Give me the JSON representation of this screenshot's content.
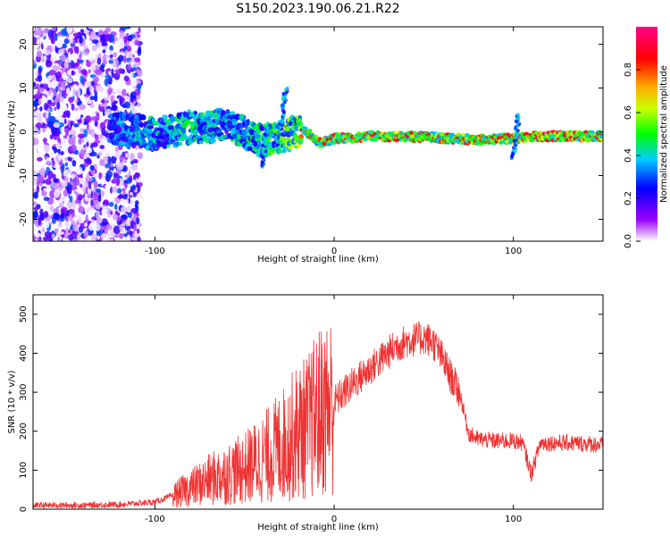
{
  "title": "S150.2023.190.06.21.R22",
  "chart_data": [
    {
      "type": "heatmap",
      "xlabel": "Height of straight line (km)",
      "ylabel": "Frequency (Hz)",
      "xlim": [
        -168,
        150
      ],
      "ylim": [
        -25,
        24
      ],
      "xticks": [
        -100,
        0,
        100
      ],
      "yticks": [
        -20,
        -10,
        0,
        10,
        20
      ],
      "colorbar": {
        "label": "Normalized spectral amplitude",
        "range": [
          0,
          1
        ],
        "ticks": [
          0.0,
          0.2,
          0.4,
          0.6,
          0.8
        ],
        "tick_labels": [
          "0.0",
          "0.2",
          "0.4",
          "0.6",
          "0.8"
        ],
        "colormap": [
          "#ffffff",
          "#8800ff",
          "#0000ff",
          "#00ccff",
          "#00ff00",
          "#ffff00",
          "#ff8800",
          "#ff0000",
          "#ff0088"
        ]
      },
      "ridge": [
        {
          "x": -168,
          "f": null,
          "amp": 0.2
        },
        {
          "x": -120,
          "f": 0.5,
          "amp": 0.3
        },
        {
          "x": -100,
          "f": -0.5,
          "amp": 0.35
        },
        {
          "x": -80,
          "f": 1.0,
          "amp": 0.4
        },
        {
          "x": -60,
          "f": 1.5,
          "amp": 0.35
        },
        {
          "x": -40,
          "f": -2.0,
          "amp": 0.4
        },
        {
          "x": -20,
          "f": 0.0,
          "amp": 0.5
        },
        {
          "x": -15,
          "f": 0.0,
          "amp": 0.85
        },
        {
          "x": -8,
          "f": -2.5,
          "amp": 0.85
        },
        {
          "x": 0,
          "f": -1.5,
          "amp": 0.9
        },
        {
          "x": 20,
          "f": -1.0,
          "amp": 0.9
        },
        {
          "x": 50,
          "f": -1.2,
          "amp": 0.9
        },
        {
          "x": 80,
          "f": -1.8,
          "amp": 0.85
        },
        {
          "x": 100,
          "f": -1.5,
          "amp": 0.9
        },
        {
          "x": 110,
          "f": -1.0,
          "amp": 0.9
        },
        {
          "x": 150,
          "f": -1.0,
          "amp": 0.9
        }
      ]
    },
    {
      "type": "line",
      "xlabel": "Height of straight line (km)",
      "ylabel": "SNR (10 * v/v)",
      "xlim": [
        -168,
        150
      ],
      "ylim": [
        0,
        550
      ],
      "xticks": [
        -100,
        0,
        100
      ],
      "yticks": [
        0,
        100,
        200,
        300,
        400,
        500
      ],
      "color": "#ee3333",
      "series": [
        {
          "x": [
            -168,
            -140,
            -120,
            -100,
            -90,
            -80,
            -70,
            -60,
            -50,
            -40,
            -30,
            -25,
            -20,
            -15,
            -10,
            -5,
            0,
            10,
            20,
            30,
            35,
            40,
            50,
            55,
            60,
            65,
            70,
            75,
            80,
            90,
            100,
            105,
            110,
            115,
            120,
            130,
            140,
            150
          ],
          "y": [
            10,
            10,
            12,
            18,
            35,
            55,
            75,
            90,
            105,
            130,
            160,
            180,
            200,
            210,
            240,
            260,
            275,
            320,
            360,
            400,
            420,
            430,
            440,
            430,
            390,
            340,
            300,
            195,
            180,
            175,
            175,
            170,
            90,
            170,
            170,
            170,
            168,
            165
          ]
        }
      ]
    }
  ]
}
